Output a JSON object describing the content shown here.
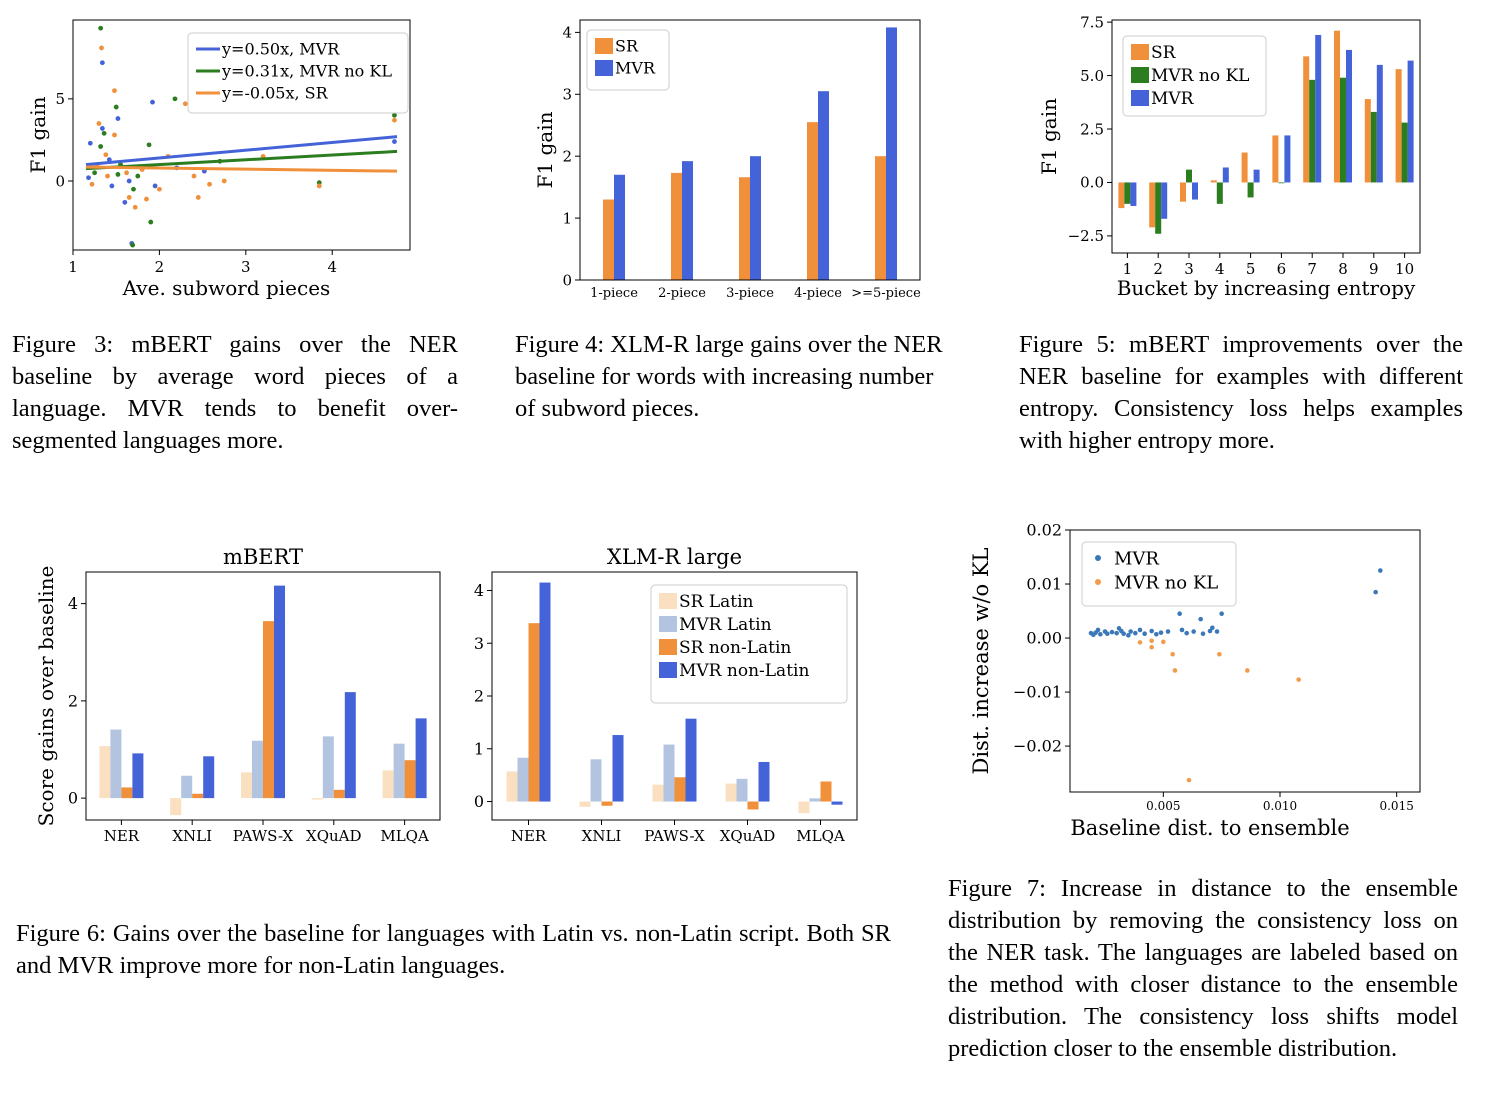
{
  "colors": {
    "mvr": "#4463d8",
    "mvr_nokl": "#2b7d1f",
    "sr": "#f0903a",
    "sr_latin": "#fae0c0",
    "mvr_latin": "#b2c4e0",
    "scatter_mvr": "#3b78b8",
    "scatter_nokl": "#f29b4a"
  },
  "captions": {
    "fig3": "Figure 3: mBERT gains over the NER baseline by average word pieces of a language. MVR tends to benefit over-segmented languages more.",
    "fig4": "Figure 4: XLM-R large gains over the NER baseline for words with increasing number of subword pieces.",
    "fig5": "Figure 5: mBERT improvements over the NER baseline for examples with different entropy. Consistency loss helps examples with higher entropy more.",
    "fig6": "Figure 6: Gains over the baseline for languages with Latin vs. non-Latin script. Both SR and MVR improve more for non-Latin languages.",
    "fig7": "Figure 7: Increase in distance to the ensemble distribution by removing the consistency loss on the NER task. The languages are labeled based on the method with closer distance to the ensemble distribution. The consistency loss shifts model prediction closer to the ensemble distribution."
  },
  "chart_data": [
    {
      "id": "fig3",
      "type": "scatter",
      "xlabel": "Ave. subword pieces",
      "ylabel": "F1 gain",
      "xlim": [
        1,
        4.9
      ],
      "ylim": [
        -4.2,
        9.8
      ],
      "xticks": [
        1,
        2,
        3,
        4
      ],
      "yticks": [
        0,
        5
      ],
      "legend_position": "top-right",
      "lines": [
        {
          "name": "y=0.50x, MVR",
          "color": "#4463d8",
          "x": [
            1.15,
            4.75
          ],
          "y": [
            1.0,
            2.7
          ]
        },
        {
          "name": "y=0.31x, MVR no KL",
          "color": "#2b7d1f",
          "x": [
            1.15,
            4.75
          ],
          "y": [
            0.75,
            1.8
          ]
        },
        {
          "name": "y=-0.05x, SR",
          "color": "#f0903a",
          "x": [
            1.15,
            4.75
          ],
          "y": [
            0.85,
            0.6
          ]
        }
      ],
      "points": [
        {
          "x": 1.32,
          "y": 9.3,
          "c": "mvr_nokl"
        },
        {
          "x": 1.33,
          "y": 8.1,
          "c": "sr"
        },
        {
          "x": 1.34,
          "y": 7.2,
          "c": "mvr"
        },
        {
          "x": 1.48,
          "y": 5.5,
          "c": "sr"
        },
        {
          "x": 1.5,
          "y": 4.5,
          "c": "mvr_nokl"
        },
        {
          "x": 1.52,
          "y": 3.8,
          "c": "mvr"
        },
        {
          "x": 1.3,
          "y": 3.5,
          "c": "sr"
        },
        {
          "x": 1.34,
          "y": 3.2,
          "c": "mvr"
        },
        {
          "x": 1.36,
          "y": 2.9,
          "c": "mvr_nokl"
        },
        {
          "x": 1.48,
          "y": 2.8,
          "c": "sr"
        },
        {
          "x": 1.2,
          "y": 2.3,
          "c": "mvr"
        },
        {
          "x": 1.32,
          "y": 2.1,
          "c": "mvr_nokl"
        },
        {
          "x": 1.38,
          "y": 1.6,
          "c": "sr"
        },
        {
          "x": 1.42,
          "y": 1.3,
          "c": "mvr"
        },
        {
          "x": 1.55,
          "y": 1.0,
          "c": "mvr_nokl"
        },
        {
          "x": 1.62,
          "y": 0.5,
          "c": "sr"
        },
        {
          "x": 1.65,
          "y": 0.0,
          "c": "mvr"
        },
        {
          "x": 1.7,
          "y": -0.5,
          "c": "mvr_nokl"
        },
        {
          "x": 1.65,
          "y": -1.0,
          "c": "sr"
        },
        {
          "x": 1.6,
          "y": -1.3,
          "c": "mvr"
        },
        {
          "x": 1.72,
          "y": -1.6,
          "c": "sr"
        },
        {
          "x": 1.68,
          "y": -3.8,
          "c": "mvr"
        },
        {
          "x": 1.69,
          "y": -3.9,
          "c": "mvr_nokl"
        },
        {
          "x": 1.9,
          "y": -2.5,
          "c": "mvr_nokl"
        },
        {
          "x": 1.85,
          "y": -1.1,
          "c": "sr"
        },
        {
          "x": 1.95,
          "y": -0.3,
          "c": "mvr"
        },
        {
          "x": 2.0,
          "y": -0.5,
          "c": "sr"
        },
        {
          "x": 1.92,
          "y": 4.8,
          "c": "mvr"
        },
        {
          "x": 2.18,
          "y": 5.0,
          "c": "mvr_nokl"
        },
        {
          "x": 2.3,
          "y": 4.7,
          "c": "sr"
        },
        {
          "x": 1.88,
          "y": 2.2,
          "c": "mvr_nokl"
        },
        {
          "x": 2.1,
          "y": 1.5,
          "c": "sr"
        },
        {
          "x": 2.2,
          "y": 0.8,
          "c": "mvr"
        },
        {
          "x": 2.4,
          "y": 0.3,
          "c": "sr"
        },
        {
          "x": 2.45,
          "y": -1.0,
          "c": "sr"
        },
        {
          "x": 2.52,
          "y": 0.6,
          "c": "mvr"
        },
        {
          "x": 2.58,
          "y": -0.2,
          "c": "sr"
        },
        {
          "x": 2.7,
          "y": 1.2,
          "c": "mvr_nokl"
        },
        {
          "x": 2.75,
          "y": 0.0,
          "c": "sr"
        },
        {
          "x": 1.22,
          "y": -0.2,
          "c": "sr"
        },
        {
          "x": 1.18,
          "y": 0.2,
          "c": "mvr"
        },
        {
          "x": 1.25,
          "y": 0.5,
          "c": "mvr_nokl"
        },
        {
          "x": 1.28,
          "y": 0.9,
          "c": "sr"
        },
        {
          "x": 1.4,
          "y": 0.3,
          "c": "sr"
        },
        {
          "x": 1.45,
          "y": -0.3,
          "c": "mvr"
        },
        {
          "x": 1.52,
          "y": 0.4,
          "c": "mvr_nokl"
        },
        {
          "x": 1.75,
          "y": 0.3,
          "c": "mvr_nokl"
        },
        {
          "x": 1.8,
          "y": 0.7,
          "c": "sr"
        },
        {
          "x": 3.2,
          "y": 1.5,
          "c": "sr"
        },
        {
          "x": 3.85,
          "y": -0.1,
          "c": "mvr_nokl"
        },
        {
          "x": 3.85,
          "y": -0.3,
          "c": "sr"
        },
        {
          "x": 4.72,
          "y": 4.0,
          "c": "mvr_nokl"
        },
        {
          "x": 4.72,
          "y": 3.7,
          "c": "sr"
        },
        {
          "x": 4.72,
          "y": 2.4,
          "c": "mvr"
        }
      ]
    },
    {
      "id": "fig4",
      "type": "bar",
      "ylabel": "F1 gain",
      "categories": [
        "1-piece",
        "2-piece",
        "3-piece",
        "4-piece",
        ">=5-piece"
      ],
      "ylim": [
        0,
        4.2
      ],
      "yticks": [
        0,
        1,
        2,
        3,
        4
      ],
      "legend_position": "top-left",
      "series": [
        {
          "name": "SR",
          "color": "#f0903a",
          "values": [
            1.3,
            1.73,
            1.66,
            2.55,
            2.0
          ]
        },
        {
          "name": "MVR",
          "color": "#4463d8",
          "values": [
            1.7,
            1.92,
            2.0,
            3.05,
            4.08
          ]
        }
      ]
    },
    {
      "id": "fig5",
      "type": "bar",
      "xlabel": "Bucket by increasing entropy",
      "ylabel": "F1 gain",
      "categories": [
        "1",
        "2",
        "3",
        "4",
        "5",
        "6",
        "7",
        "8",
        "9",
        "10"
      ],
      "ylim": [
        -3.3,
        7.6
      ],
      "yticks": [
        -2.5,
        0.0,
        2.5,
        5.0,
        7.5
      ],
      "ytick_labels": [
        "−2.5",
        "0.0",
        "2.5",
        "5.0",
        "7.5"
      ],
      "legend_position": "top-left",
      "series": [
        {
          "name": "SR",
          "color": "#f0903a",
          "values": [
            -1.2,
            -2.1,
            -0.9,
            0.1,
            1.4,
            2.2,
            5.9,
            7.1,
            3.9,
            5.3
          ]
        },
        {
          "name": "MVR no KL",
          "color": "#2b7d1f",
          "values": [
            -1.0,
            -2.4,
            0.6,
            -1.0,
            -0.7,
            0.0,
            4.8,
            4.9,
            3.3,
            2.8
          ]
        },
        {
          "name": "MVR",
          "color": "#4463d8",
          "values": [
            -1.1,
            -1.7,
            -0.8,
            0.7,
            0.6,
            2.2,
            6.9,
            6.2,
            5.5,
            5.7
          ]
        }
      ]
    },
    {
      "id": "fig6a",
      "type": "bar",
      "title": "mBERT",
      "ylabel": "Score gains over baseline",
      "categories": [
        "NER",
        "XNLI",
        "PAWS-X",
        "XQuAD",
        "MLQA"
      ],
      "ylim": [
        -0.45,
        4.65
      ],
      "yticks": [
        0,
        2,
        4
      ],
      "series": [
        {
          "name": "SR Latin",
          "color": "#fae0c0",
          "values": [
            1.07,
            -0.35,
            0.53,
            -0.03,
            0.57
          ]
        },
        {
          "name": "MVR Latin",
          "color": "#b2c4e0",
          "values": [
            1.41,
            0.46,
            1.18,
            1.27,
            1.12
          ]
        },
        {
          "name": "SR non-Latin",
          "color": "#f0903a",
          "values": [
            0.22,
            0.09,
            3.64,
            0.17,
            0.78
          ]
        },
        {
          "name": "MVR non-Latin",
          "color": "#4463d8",
          "values": [
            0.92,
            0.86,
            4.37,
            2.18,
            1.64
          ]
        }
      ]
    },
    {
      "id": "fig6b",
      "type": "bar",
      "title": "XLM-R large",
      "categories": [
        "NER",
        "XNLI",
        "PAWS-X",
        "XQuAD",
        "MLQA"
      ],
      "ylim": [
        -0.35,
        4.35
      ],
      "yticks": [
        0,
        1,
        2,
        3,
        4
      ],
      "legend_position": "top-right",
      "series": [
        {
          "name": "SR Latin",
          "color": "#fae0c0",
          "values": [
            0.57,
            -0.1,
            0.32,
            0.34,
            -0.22
          ]
        },
        {
          "name": "MVR Latin",
          "color": "#b2c4e0",
          "values": [
            0.83,
            0.8,
            1.08,
            0.43,
            0.06
          ]
        },
        {
          "name": "SR non-Latin",
          "color": "#f0903a",
          "values": [
            3.38,
            -0.08,
            0.46,
            -0.15,
            0.38
          ]
        },
        {
          "name": "MVR non-Latin",
          "color": "#4463d8",
          "values": [
            4.15,
            1.26,
            1.57,
            0.75,
            -0.06
          ]
        }
      ]
    },
    {
      "id": "fig7",
      "type": "scatter",
      "xlabel": "Baseline dist.  to ensemble",
      "ylabel": "Dist.  increase w/o KL",
      "xlim": [
        0.001,
        0.016
      ],
      "ylim": [
        -0.0285,
        0.02
      ],
      "xticks": [
        0.005,
        0.01,
        0.015
      ],
      "xtick_labels": [
        "0.005",
        "0.010",
        "0.015"
      ],
      "yticks": [
        -0.02,
        -0.01,
        0.0,
        0.01,
        0.02
      ],
      "ytick_labels": [
        "−0.02",
        "−0.01",
        "0.00",
        "0.01",
        "0.02"
      ],
      "legend_position": "top-left",
      "legend": [
        {
          "name": "MVR",
          "color": "#3b78b8"
        },
        {
          "name": "MVR no KL",
          "color": "#f29b4a"
        }
      ],
      "points": [
        {
          "x": 0.0019,
          "y": 0.0009,
          "c": "scatter_mvr"
        },
        {
          "x": 0.002,
          "y": 0.0006,
          "c": "scatter_mvr"
        },
        {
          "x": 0.0021,
          "y": 0.001,
          "c": "scatter_mvr"
        },
        {
          "x": 0.0022,
          "y": 0.0015,
          "c": "scatter_mvr"
        },
        {
          "x": 0.0023,
          "y": 0.0007,
          "c": "scatter_mvr"
        },
        {
          "x": 0.0025,
          "y": 0.0012,
          "c": "scatter_mvr"
        },
        {
          "x": 0.0026,
          "y": 0.0008,
          "c": "scatter_mvr"
        },
        {
          "x": 0.0028,
          "y": 0.0011,
          "c": "scatter_mvr"
        },
        {
          "x": 0.003,
          "y": 0.0009,
          "c": "scatter_mvr"
        },
        {
          "x": 0.0031,
          "y": 0.0018,
          "c": "scatter_mvr"
        },
        {
          "x": 0.0032,
          "y": 0.0013,
          "c": "scatter_mvr"
        },
        {
          "x": 0.0033,
          "y": 0.0008,
          "c": "scatter_mvr"
        },
        {
          "x": 0.0035,
          "y": 0.0005,
          "c": "scatter_mvr"
        },
        {
          "x": 0.0036,
          "y": 0.0012,
          "c": "scatter_mvr"
        },
        {
          "x": 0.0038,
          "y": 0.0009,
          "c": "scatter_mvr"
        },
        {
          "x": 0.004,
          "y": 0.0015,
          "c": "scatter_mvr"
        },
        {
          "x": 0.0042,
          "y": 0.0008,
          "c": "scatter_mvr"
        },
        {
          "x": 0.0045,
          "y": 0.0013,
          "c": "scatter_mvr"
        },
        {
          "x": 0.0047,
          "y": 0.0007,
          "c": "scatter_mvr"
        },
        {
          "x": 0.0049,
          "y": 0.001,
          "c": "scatter_mvr"
        },
        {
          "x": 0.0052,
          "y": 0.0012,
          "c": "scatter_mvr"
        },
        {
          "x": 0.0057,
          "y": 0.0045,
          "c": "scatter_mvr"
        },
        {
          "x": 0.0058,
          "y": 0.0015,
          "c": "scatter_mvr"
        },
        {
          "x": 0.006,
          "y": 0.0009,
          "c": "scatter_mvr"
        },
        {
          "x": 0.0063,
          "y": 0.0012,
          "c": "scatter_mvr"
        },
        {
          "x": 0.0066,
          "y": 0.0035,
          "c": "scatter_mvr"
        },
        {
          "x": 0.0067,
          "y": 0.0008,
          "c": "scatter_mvr"
        },
        {
          "x": 0.007,
          "y": 0.0013,
          "c": "scatter_mvr"
        },
        {
          "x": 0.0071,
          "y": 0.0019,
          "c": "scatter_mvr"
        },
        {
          "x": 0.0073,
          "y": 0.0012,
          "c": "scatter_mvr"
        },
        {
          "x": 0.0075,
          "y": 0.0045,
          "c": "scatter_mvr"
        },
        {
          "x": 0.0141,
          "y": 0.0085,
          "c": "scatter_mvr"
        },
        {
          "x": 0.0143,
          "y": 0.0125,
          "c": "scatter_mvr"
        },
        {
          "x": 0.004,
          "y": -0.0008,
          "c": "scatter_nokl"
        },
        {
          "x": 0.0045,
          "y": -0.0005,
          "c": "scatter_nokl"
        },
        {
          "x": 0.0045,
          "y": -0.0017,
          "c": "scatter_nokl"
        },
        {
          "x": 0.005,
          "y": -0.0007,
          "c": "scatter_nokl"
        },
        {
          "x": 0.0054,
          "y": -0.003,
          "c": "scatter_nokl"
        },
        {
          "x": 0.0055,
          "y": -0.006,
          "c": "scatter_nokl"
        },
        {
          "x": 0.0061,
          "y": -0.0263,
          "c": "scatter_nokl"
        },
        {
          "x": 0.0074,
          "y": -0.003,
          "c": "scatter_nokl"
        },
        {
          "x": 0.0086,
          "y": -0.006,
          "c": "scatter_nokl"
        },
        {
          "x": 0.0108,
          "y": -0.0077,
          "c": "scatter_nokl"
        }
      ]
    }
  ]
}
